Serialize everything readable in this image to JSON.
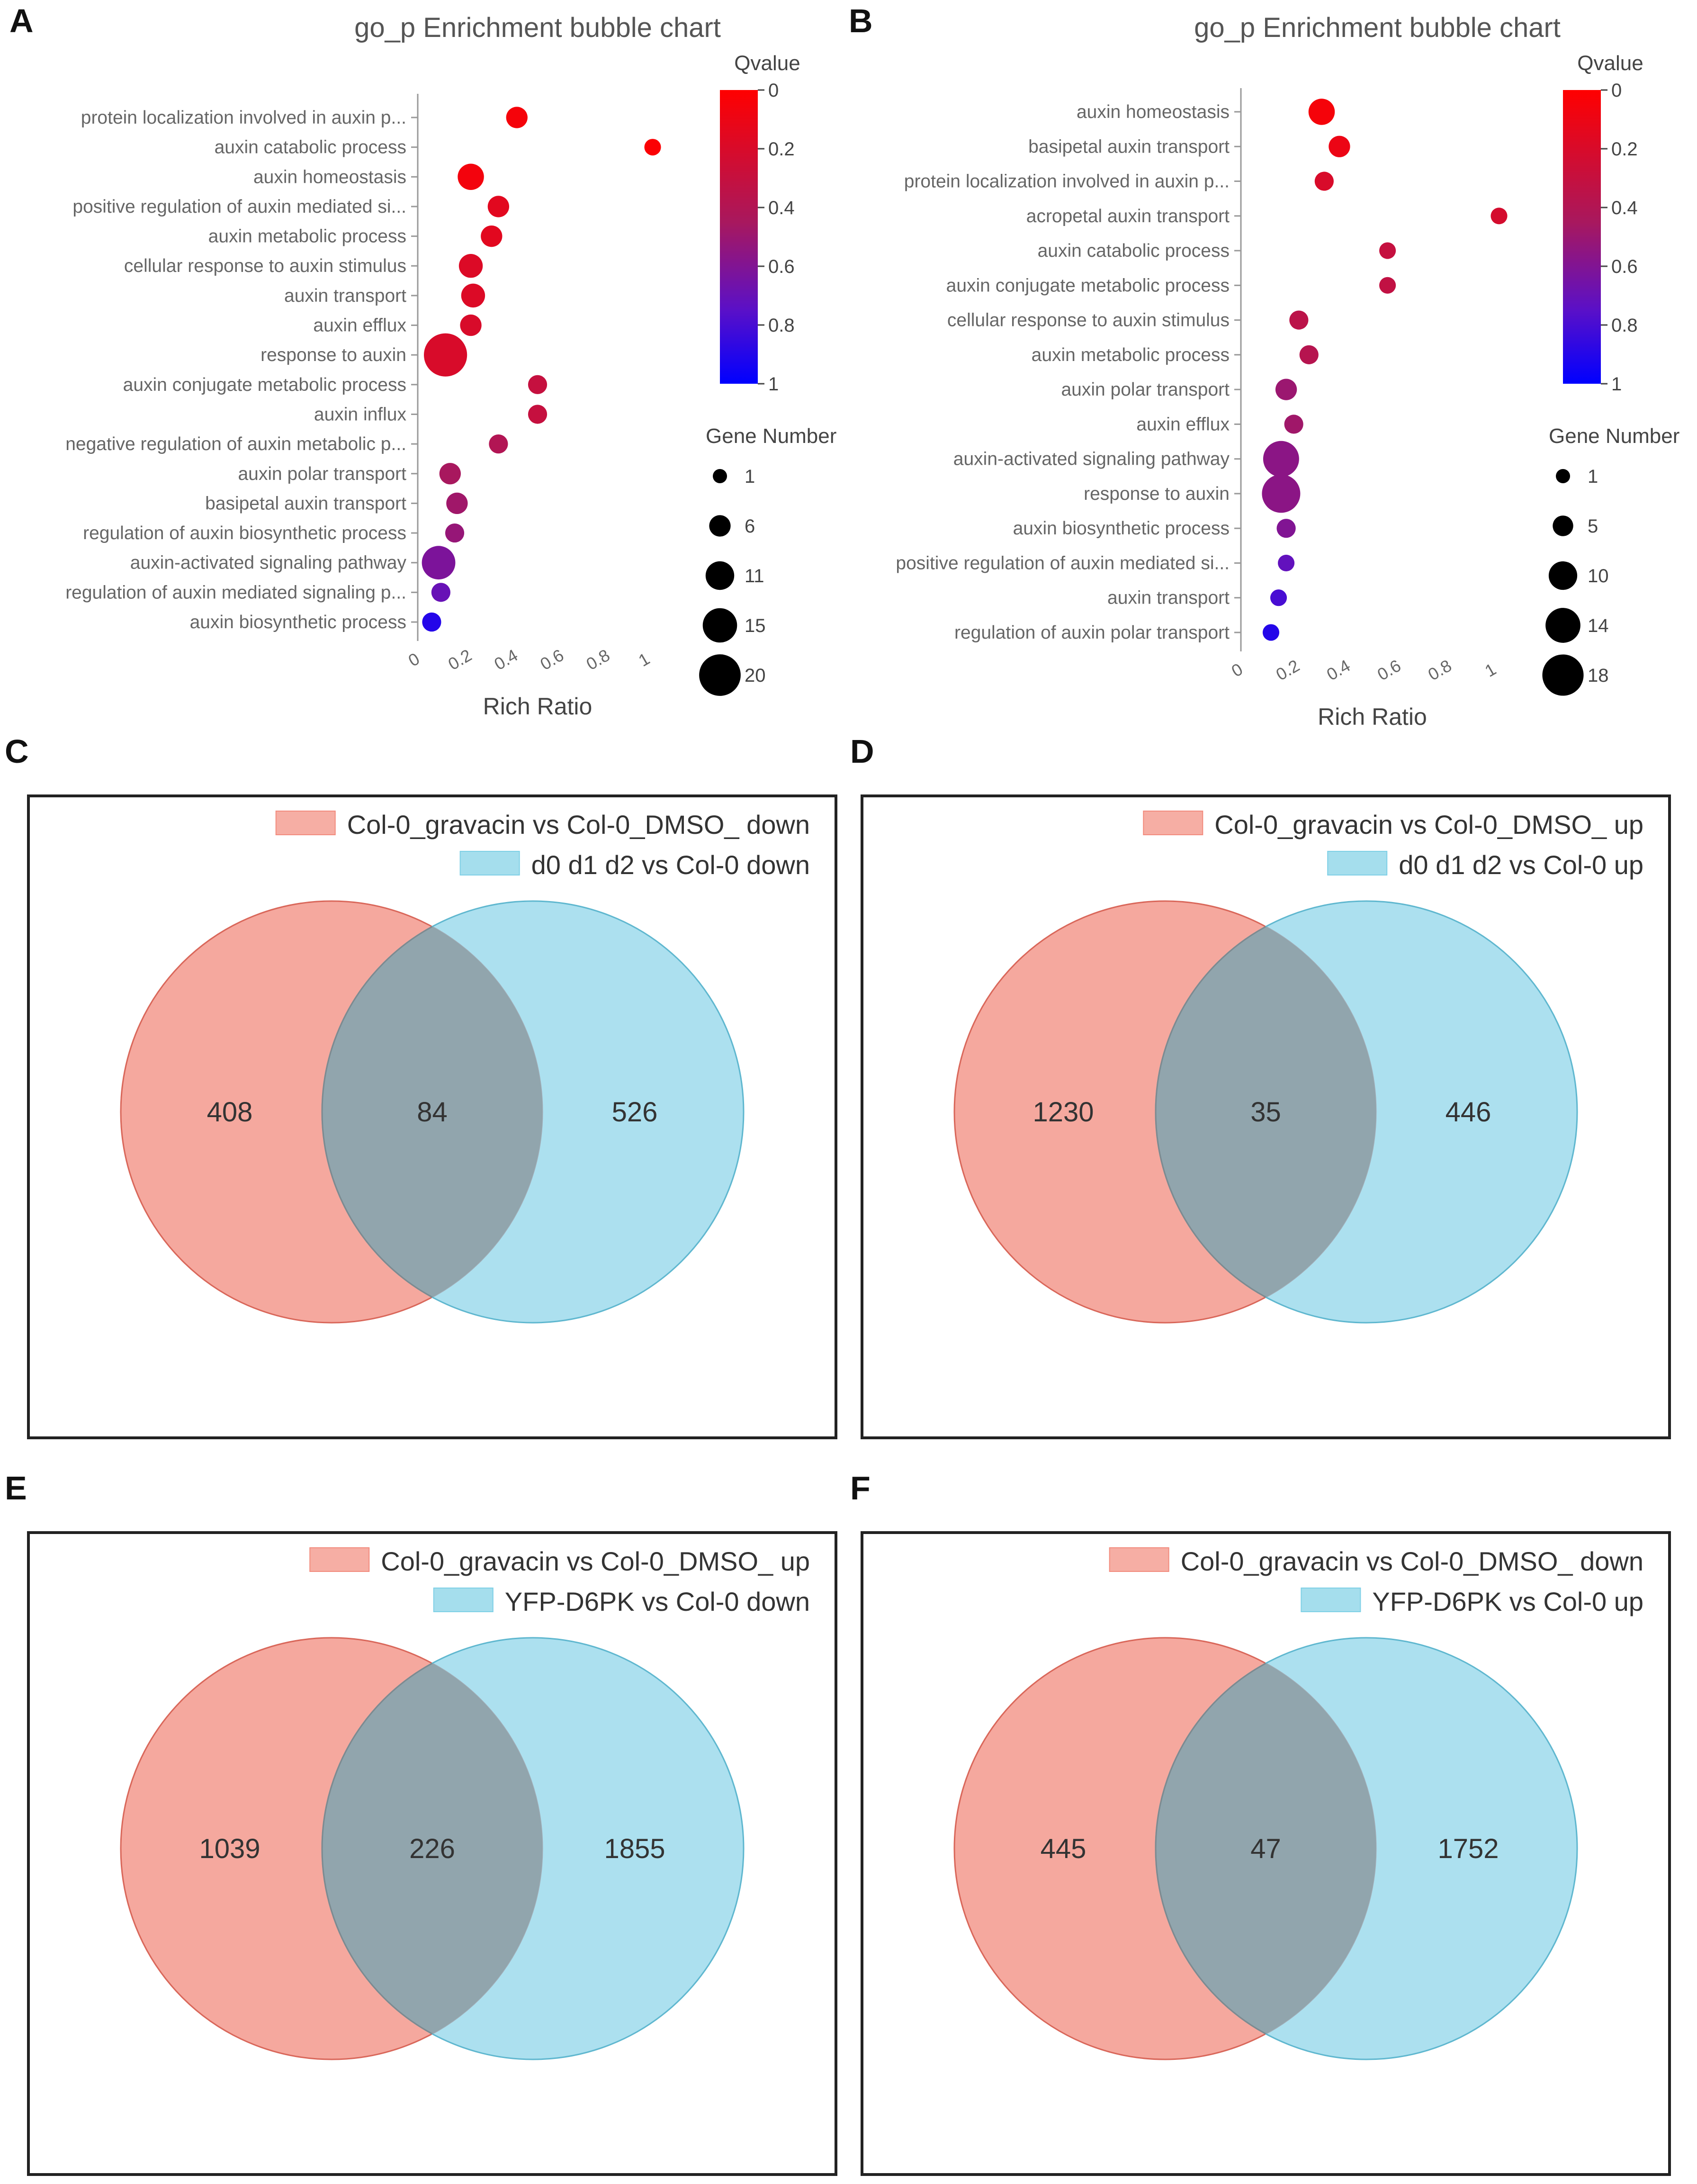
{
  "chart_data": [
    {
      "type": "scatter",
      "panel_label": "A",
      "title": "go_p Enrichment bubble chart",
      "xlabel": "Rich Ratio",
      "xlim": [
        0,
        1
      ],
      "x_ticks": [
        "0",
        "0.2",
        "0.4",
        "0.6",
        "0.8",
        "1"
      ],
      "color_legend": {
        "title": "Qvalue",
        "min": 0,
        "max": 1,
        "ticks": [
          "0",
          "0.2",
          "0.4",
          "0.6",
          "0.8",
          "1"
        ],
        "low_color": "#ff0000",
        "high_color": "#0000ff"
      },
      "size_legend": {
        "title": "Gene Number",
        "values": [
          1,
          6,
          11,
          15,
          20
        ],
        "labels": [
          "1",
          "6",
          "11",
          "15",
          "20"
        ]
      },
      "points": [
        {
          "term": "protein localization involved in auxin p...",
          "rich_ratio": 0.41,
          "qvalue": 0.05,
          "genes": 4
        },
        {
          "term": "auxin catabolic process",
          "rich_ratio": 1.0,
          "qvalue": 0.02,
          "genes": 2
        },
        {
          "term": "auxin homeostasis",
          "rich_ratio": 0.21,
          "qvalue": 0.06,
          "genes": 6
        },
        {
          "term": "positive regulation of auxin mediated si...",
          "rich_ratio": 0.33,
          "qvalue": 0.15,
          "genes": 4
        },
        {
          "term": "auxin metabolic process",
          "rich_ratio": 0.3,
          "qvalue": 0.15,
          "genes": 4
        },
        {
          "term": "cellular response to auxin stimulus",
          "rich_ratio": 0.21,
          "qvalue": 0.18,
          "genes": 5
        },
        {
          "term": "auxin transport",
          "rich_ratio": 0.22,
          "qvalue": 0.18,
          "genes": 5
        },
        {
          "term": "auxin efflux",
          "rich_ratio": 0.21,
          "qvalue": 0.2,
          "genes": 4
        },
        {
          "term": "response to auxin",
          "rich_ratio": 0.1,
          "qvalue": 0.2,
          "genes": 13
        },
        {
          "term": "auxin conjugate metabolic process",
          "rich_ratio": 0.5,
          "qvalue": 0.3,
          "genes": 3
        },
        {
          "term": "auxin influx",
          "rich_ratio": 0.5,
          "qvalue": 0.3,
          "genes": 3
        },
        {
          "term": "negative regulation of auxin metabolic p...",
          "rich_ratio": 0.33,
          "qvalue": 0.4,
          "genes": 3
        },
        {
          "term": "auxin polar transport",
          "rich_ratio": 0.12,
          "qvalue": 0.45,
          "genes": 4
        },
        {
          "term": "basipetal auxin transport",
          "rich_ratio": 0.15,
          "qvalue": 0.48,
          "genes": 4
        },
        {
          "term": "regulation of auxin biosynthetic process",
          "rich_ratio": 0.14,
          "qvalue": 0.52,
          "genes": 3
        },
        {
          "term": "auxin-activated signaling pathway",
          "rich_ratio": 0.07,
          "qvalue": 0.62,
          "genes": 9
        },
        {
          "term": "regulation of auxin mediated signaling p...",
          "rich_ratio": 0.08,
          "qvalue": 0.7,
          "genes": 3
        },
        {
          "term": "auxin biosynthetic process",
          "rich_ratio": 0.04,
          "qvalue": 0.9,
          "genes": 3
        }
      ]
    },
    {
      "type": "scatter",
      "panel_label": "B",
      "title": "go_p Enrichment bubble chart",
      "xlabel": "Rich Ratio",
      "xlim": [
        0,
        1
      ],
      "x_ticks": [
        "0",
        "0.2",
        "0.4",
        "0.6",
        "0.8",
        "1"
      ],
      "color_legend": {
        "title": "Qvalue",
        "min": 0,
        "max": 1,
        "ticks": [
          "0",
          "0.2",
          "0.4",
          "0.6",
          "0.8",
          "1"
        ],
        "low_color": "#ff0000",
        "high_color": "#0000ff"
      },
      "size_legend": {
        "title": "Gene Number",
        "values": [
          1,
          5,
          10,
          14,
          18
        ],
        "labels": [
          "1",
          "5",
          "10",
          "14",
          "18"
        ]
      },
      "points": [
        {
          "term": "auxin homeostasis",
          "rich_ratio": 0.3,
          "qvalue": 0.05,
          "genes": 6
        },
        {
          "term": "basipetal auxin transport",
          "rich_ratio": 0.37,
          "qvalue": 0.1,
          "genes": 4
        },
        {
          "term": "protein localization involved in auxin p...",
          "rich_ratio": 0.31,
          "qvalue": 0.2,
          "genes": 3
        },
        {
          "term": "acropetal auxin transport",
          "rich_ratio": 1.0,
          "qvalue": 0.22,
          "genes": 2
        },
        {
          "term": "auxin catabolic process",
          "rich_ratio": 0.56,
          "qvalue": 0.3,
          "genes": 2
        },
        {
          "term": "auxin conjugate metabolic process",
          "rich_ratio": 0.56,
          "qvalue": 0.32,
          "genes": 2
        },
        {
          "term": "cellular response to auxin stimulus",
          "rich_ratio": 0.21,
          "qvalue": 0.35,
          "genes": 3
        },
        {
          "term": "auxin metabolic process",
          "rich_ratio": 0.25,
          "qvalue": 0.38,
          "genes": 3
        },
        {
          "term": "auxin polar transport",
          "rich_ratio": 0.16,
          "qvalue": 0.5,
          "genes": 4
        },
        {
          "term": "auxin efflux",
          "rich_ratio": 0.19,
          "qvalue": 0.48,
          "genes": 3
        },
        {
          "term": "auxin-activated signaling pathway",
          "rich_ratio": 0.14,
          "qvalue": 0.56,
          "genes": 10
        },
        {
          "term": "response to auxin",
          "rich_ratio": 0.14,
          "qvalue": 0.56,
          "genes": 11
        },
        {
          "term": "auxin biosynthetic process",
          "rich_ratio": 0.16,
          "qvalue": 0.6,
          "genes": 3
        },
        {
          "term": "positive regulation of auxin mediated si...",
          "rich_ratio": 0.16,
          "qvalue": 0.72,
          "genes": 2
        },
        {
          "term": "auxin transport",
          "rich_ratio": 0.13,
          "qvalue": 0.8,
          "genes": 2
        },
        {
          "term": "regulation of auxin polar transport",
          "rich_ratio": 0.1,
          "qvalue": 0.9,
          "genes": 2
        }
      ]
    },
    {
      "type": "venn",
      "panel_label": "C",
      "sets": [
        {
          "name": "Col-0_gravacin vs Col-0_DMSO_ down",
          "color": "#f28b7d"
        },
        {
          "name": "d0 d1 d2 vs Col-0 down",
          "color": "#7fd0e6"
        }
      ],
      "left_only": 408,
      "overlap": 84,
      "right_only": 526
    },
    {
      "type": "venn",
      "panel_label": "D",
      "sets": [
        {
          "name": "Col-0_gravacin vs Col-0_DMSO_ up",
          "color": "#f28b7d"
        },
        {
          "name": "d0 d1 d2 vs Col-0 up",
          "color": "#7fd0e6"
        }
      ],
      "left_only": 1230,
      "overlap": 35,
      "right_only": 446
    },
    {
      "type": "venn",
      "panel_label": "E",
      "sets": [
        {
          "name": "Col-0_gravacin vs Col-0_DMSO_ up",
          "color": "#f28b7d"
        },
        {
          "name": "YFP-D6PK vs Col-0 down",
          "color": "#7fd0e6"
        }
      ],
      "left_only": 1039,
      "overlap": 226,
      "right_only": 1855
    },
    {
      "type": "venn",
      "panel_label": "F",
      "sets": [
        {
          "name": "Col-0_gravacin vs Col-0_DMSO_ down",
          "color": "#f28b7d"
        },
        {
          "name": "YFP-D6PK vs Col-0 up",
          "color": "#7fd0e6"
        }
      ],
      "left_only": 445,
      "overlap": 47,
      "right_only": 1752
    }
  ]
}
